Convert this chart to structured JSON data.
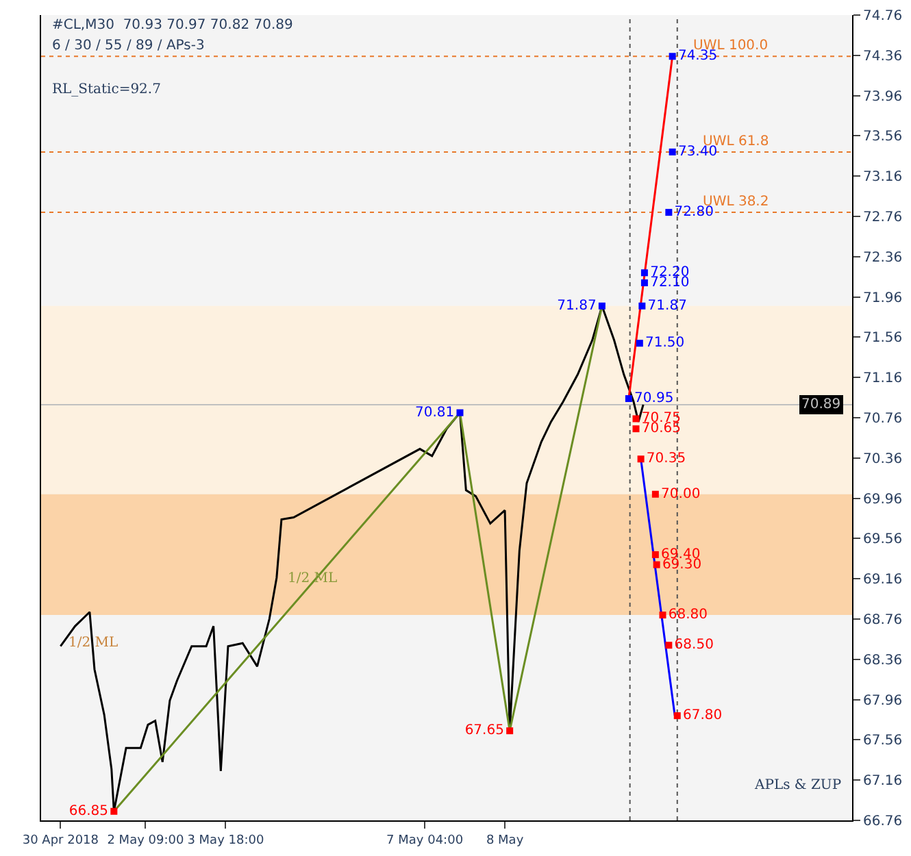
{
  "chart_data": {
    "type": "line",
    "title": "#CL,M30  70.93 70.97 70.82 70.89",
    "subtitle": "6 / 30 / 55 / 89 / APs-3",
    "xlim": [
      "2018-04-30T14:00",
      "2018-05-14T12:00"
    ],
    "xticks": [
      {
        "value": "2018-04-30T22:00",
        "label": "30 Apr 2018"
      },
      {
        "value": "2018-05-02T09:00",
        "label": "2 May 09:00"
      },
      {
        "value": "2018-05-03T18:00",
        "label": "3 May 18:00"
      },
      {
        "value": "2018-05-07T04:00",
        "label": "7 May 04:00"
      },
      {
        "value": "2018-05-08T13:00",
        "label": "8 May"
      }
    ],
    "ylim": [
      66.76,
      74.76
    ],
    "yticks": [
      66.76,
      67.16,
      67.56,
      67.96,
      68.36,
      68.76,
      69.16,
      69.56,
      69.96,
      70.36,
      70.76,
      71.16,
      71.56,
      71.96,
      72.36,
      72.76,
      73.16,
      73.56,
      73.96,
      74.36,
      74.76
    ],
    "grid": false,
    "series": [
      {
        "color": "#000000",
        "x": [
          "2018-04-30T22:00",
          "2018-05-01T04:00",
          "2018-05-01T10:00",
          "2018-05-01T12:00",
          "2018-05-01T16:00",
          "2018-05-01T19:00",
          "2018-05-01T20:00",
          "2018-05-02T01:00",
          "2018-05-02T07:00",
          "2018-05-02T10:00",
          "2018-05-02T13:00",
          "2018-05-02T16:00",
          "2018-05-02T19:00",
          "2018-05-02T22:00",
          "2018-05-03T04:00",
          "2018-05-03T10:00",
          "2018-05-03T13:00",
          "2018-05-03T16:00",
          "2018-05-03T19:00",
          "2018-05-04T01:00",
          "2018-05-04T07:00",
          "2018-05-04T12:00",
          "2018-05-04T15:00",
          "2018-05-04T17:00",
          "2018-05-04T22:00",
          "2018-05-07T02:00",
          "2018-05-07T07:00",
          "2018-05-07T13:00",
          "2018-05-07T18:30",
          "2018-05-07T21:00",
          "2018-05-08T01:00",
          "2018-05-08T07:00",
          "2018-05-08T13:00",
          "2018-05-08T15:00",
          "2018-05-08T19:00",
          "2018-05-08T22:00",
          "2018-05-09T04:00",
          "2018-05-09T08:00",
          "2018-05-09T13:00",
          "2018-05-09T19:00",
          "2018-05-10T01:00",
          "2018-05-10T05:00",
          "2018-05-10T10:00",
          "2018-05-10T14:00",
          "2018-05-10T18:00",
          "2018-05-10T20:00",
          "2018-05-10T22:00"
        ],
        "values": [
          68.49,
          68.69,
          68.83,
          68.26,
          67.81,
          67.27,
          66.85,
          67.48,
          67.48,
          67.71,
          67.75,
          67.34,
          67.95,
          68.15,
          68.49,
          68.49,
          68.69,
          67.25,
          68.49,
          68.52,
          68.29,
          68.76,
          69.17,
          69.75,
          69.77,
          70.45,
          70.38,
          70.65,
          70.81,
          70.04,
          69.98,
          69.71,
          69.84,
          67.65,
          69.44,
          70.11,
          70.52,
          70.72,
          70.92,
          71.19,
          71.53,
          71.87,
          71.53,
          71.19,
          70.92,
          70.72,
          70.89
        ]
      },
      {
        "color": "#6b8e23",
        "x": [
          "2018-05-01T20:00",
          "2018-05-07T18:30",
          "2018-05-08T15:00",
          "2018-05-10T05:00"
        ],
        "values": [
          66.85,
          70.81,
          67.65,
          71.87
        ]
      },
      {
        "color": "#ff0000",
        "x": [
          "2018-05-10T16:00",
          "2018-05-11T10:00"
        ],
        "values": [
          70.95,
          74.35
        ]
      },
      {
        "color": "#0000ff",
        "x": [
          "2018-05-10T21:00",
          "2018-05-11T11:00"
        ],
        "values": [
          70.35,
          67.8
        ]
      },
      {
        "type": "scatter",
        "marker": "square",
        "color": "#0000ff",
        "x": [
          "2018-05-11T10:00",
          "2018-05-11T10:00",
          "2018-05-11T08:30",
          "2018-05-10T22:30",
          "2018-05-10T22:30",
          "2018-05-10T21:30",
          "2018-05-10T20:30",
          "2018-05-10T16:00",
          "2018-05-07T18:30",
          "2018-05-10T05:00"
        ],
        "values": [
          74.35,
          73.4,
          72.8,
          72.2,
          72.1,
          71.87,
          71.5,
          70.95,
          70.81,
          71.87
        ],
        "value_labels": [
          "74.35",
          "73.40",
          "72.80",
          "72.20",
          "72.10",
          "71.87",
          "71.50",
          "70.95",
          "70.81",
          "71.87"
        ]
      },
      {
        "type": "scatter",
        "marker": "square",
        "color": "#ff0000",
        "x": [
          "2018-05-10T19:00",
          "2018-05-10T19:00",
          "2018-05-10T21:00",
          "2018-05-11T03:00",
          "2018-05-11T03:00",
          "2018-05-11T03:30",
          "2018-05-11T06:00",
          "2018-05-11T08:30",
          "2018-05-11T12:00",
          "2018-05-08T15:00",
          "2018-05-01T20:00"
        ],
        "values": [
          70.75,
          70.65,
          70.35,
          70.0,
          69.4,
          69.3,
          68.8,
          68.5,
          67.8,
          67.65,
          66.85
        ],
        "value_labels": [
          "70.75",
          "70.65",
          "70.35",
          "70.00",
          "69.40",
          "69.30",
          "68.80",
          "68.50",
          "67.80",
          "67.65",
          "66.85"
        ]
      }
    ],
    "ref_lines": [
      {
        "axis": "y",
        "value": 74.35,
        "label": "UWL 100.0",
        "color": "#e8782a",
        "line_style": "dotted"
      },
      {
        "axis": "y",
        "value": 73.4,
        "label": "UWL 61.8",
        "color": "#e8782a",
        "line_style": "dotted"
      },
      {
        "axis": "y",
        "value": 72.8,
        "label": "UWL 38.2",
        "color": "#e8782a",
        "line_style": "dotted"
      },
      {
        "axis": "y",
        "value": 70.89,
        "label": "70.89",
        "color": "#c0c0c0",
        "line_style": "solid"
      },
      {
        "axis": "x",
        "value": "2018-05-10T16:30",
        "label": null,
        "color": "#555555",
        "line_style": "dotted"
      },
      {
        "axis": "x",
        "value": "2018-05-11T12:00",
        "label": null,
        "color": "#555555",
        "line_style": "dotted"
      }
    ],
    "bands": [
      {
        "axis": "y",
        "from": 70.0,
        "to": 71.87,
        "label": null,
        "color": "#fdf1e0"
      },
      {
        "axis": "y",
        "from": 68.8,
        "to": 70.0,
        "label": null,
        "color": "#fbd3a8"
      }
    ],
    "annotations": [
      "RL_Static=92.7",
      "1/2 ML",
      "1/2 ML",
      "APLs & ZUP"
    ]
  }
}
